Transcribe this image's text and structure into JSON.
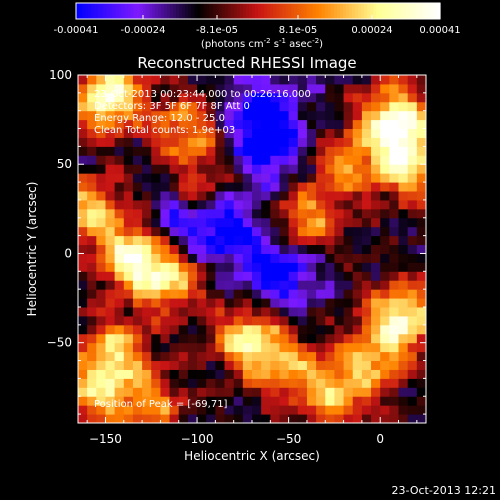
{
  "colorbar": {
    "ticks": [
      "-0.00041",
      "-0.00024",
      "-8.1e-05",
      "8.1e-05",
      "0.00024",
      "0.00041"
    ],
    "unit_parts": [
      "(photons cm",
      "-2",
      " s",
      "-1",
      " asec",
      "-2",
      ")"
    ],
    "range": [
      -0.00041,
      0.00041
    ],
    "colormap": [
      "#0000ff",
      "#7d1aff",
      "#000000",
      "#c81414",
      "#ff8200",
      "#ffff96",
      "#ffffff"
    ]
  },
  "chart_data": {
    "type": "heatmap",
    "title": "Reconstructed RHESSI Image",
    "xlabel": "Heliocentric X (arcsec)",
    "ylabel": "Heliocentric Y (arcsec)",
    "xlim": [
      -165,
      25
    ],
    "ylim": [
      -95,
      100
    ],
    "xticks": [
      -150,
      -100,
      -50,
      0
    ],
    "yticks": [
      -50,
      0,
      50,
      100
    ],
    "info_lines": [
      "23-Oct-2013 00:23:44.000 to 00:26:16.000",
      "Detectors: 3F 5F 6F 7F 8F  Att 0",
      "Energy Range: 12.0 - 25.0",
      "Clean    Total counts: 1.9e+03"
    ],
    "peak_label": "Position of Peak = [-69,71]",
    "bright_regions": [
      {
        "x": -148,
        "y": 88,
        "w": 1.0
      },
      {
        "x": -158,
        "y": 25,
        "w": 0.7
      },
      {
        "x": -135,
        "y": -2,
        "w": 0.9
      },
      {
        "x": -115,
        "y": -15,
        "w": 0.7
      },
      {
        "x": -105,
        "y": 70,
        "w": 0.6
      },
      {
        "x": -98,
        "y": 35,
        "w": 0.5
      },
      {
        "x": -72,
        "y": -48,
        "w": 0.8
      },
      {
        "x": -50,
        "y": -65,
        "w": 0.5
      },
      {
        "x": -40,
        "y": 18,
        "w": 0.6
      },
      {
        "x": -20,
        "y": 50,
        "w": 0.5
      },
      {
        "x": 8,
        "y": 75,
        "w": 1.0
      },
      {
        "x": 15,
        "y": 50,
        "w": 0.8
      },
      {
        "x": 12,
        "y": -35,
        "w": 0.9
      },
      {
        "x": -5,
        "y": -60,
        "w": 0.6
      },
      {
        "x": -145,
        "y": -55,
        "w": 0.7
      },
      {
        "x": -155,
        "y": -80,
        "w": 0.6
      },
      {
        "x": -125,
        "y": -85,
        "w": 0.5
      },
      {
        "x": -25,
        "y": -80,
        "w": 0.6
      }
    ],
    "dim_regions": [
      {
        "x": -60,
        "y": 60,
        "w": 0.7
      },
      {
        "x": -85,
        "y": 15,
        "w": 0.8
      },
      {
        "x": -55,
        "y": -10,
        "w": 0.9
      },
      {
        "x": -65,
        "y": 80,
        "w": 0.7
      },
      {
        "x": -110,
        "y": 20,
        "w": 0.6
      }
    ]
  },
  "footer": {
    "timestamp": "23-Oct-2013 12:21"
  }
}
